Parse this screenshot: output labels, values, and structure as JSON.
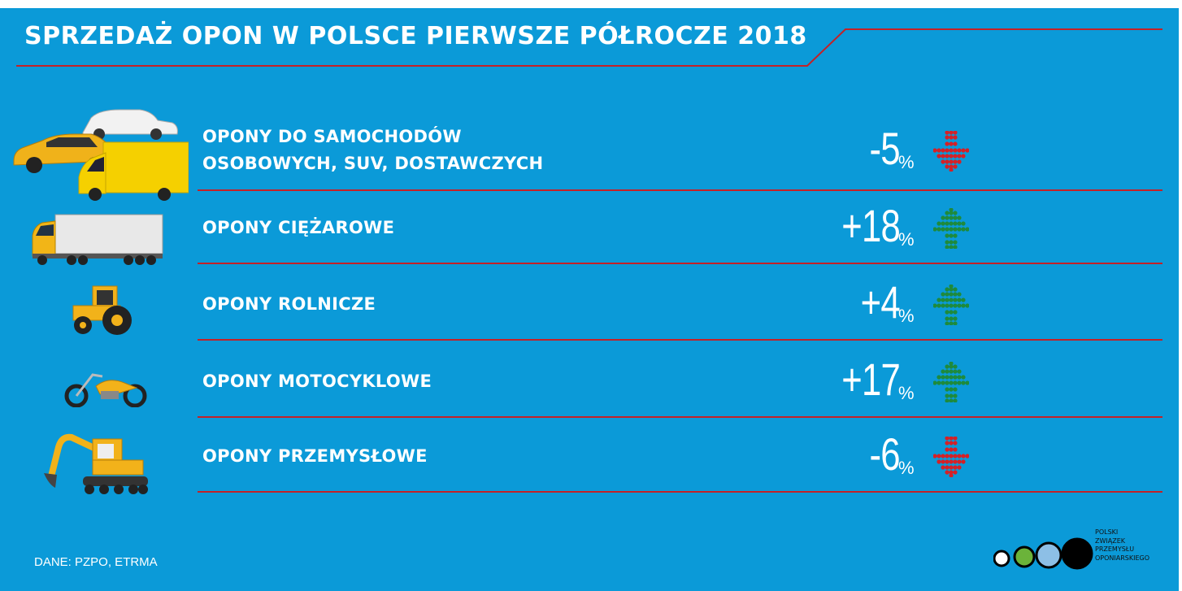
{
  "title": "SPRZEDAŻ OPON W POLSCE PIERWSZE PÓŁROCZE 2018",
  "source": "DANE: PZPO, ETRMA",
  "colors": {
    "background": "#0b9ad8",
    "accent_line": "#c42127",
    "up": "#1e8a3c",
    "down": "#d42027"
  },
  "logo": {
    "lines": [
      "POLSKI",
      "ZWIĄZEK",
      "PRZEMYSŁU",
      "OPONIARSKIEGO"
    ],
    "circle_colors": [
      "#ffffff",
      "#6bb33a",
      "#8dbfe6",
      "#000000"
    ]
  },
  "chart_data": {
    "type": "table",
    "title": "SPRZEDAŻ OPON W POLSCE PIERWSZE PÓŁROCZE 2018",
    "unit": "%",
    "rows": [
      {
        "label_lines": [
          "OPONY DO SAMOCHODÓW",
          "OSOBOWYCH, SUV, DOSTAWCZYCH"
        ],
        "value": -5,
        "value_text": "-5",
        "direction": "down",
        "icon": "cars-van-icon"
      },
      {
        "label_lines": [
          "OPONY CIĘŻAROWE"
        ],
        "value": 18,
        "value_text": "+18",
        "direction": "up",
        "icon": "truck-icon"
      },
      {
        "label_lines": [
          "OPONY ROLNICZE"
        ],
        "value": 4,
        "value_text": "+4",
        "direction": "up",
        "icon": "tractor-icon"
      },
      {
        "label_lines": [
          "OPONY MOTOCYKLOWE"
        ],
        "value": 17,
        "value_text": "+17",
        "direction": "up",
        "icon": "motorcycle-icon"
      },
      {
        "label_lines": [
          "OPONY PRZEMYSŁOWE"
        ],
        "value": -6,
        "value_text": "-6",
        "direction": "down",
        "icon": "excavator-icon"
      }
    ]
  }
}
